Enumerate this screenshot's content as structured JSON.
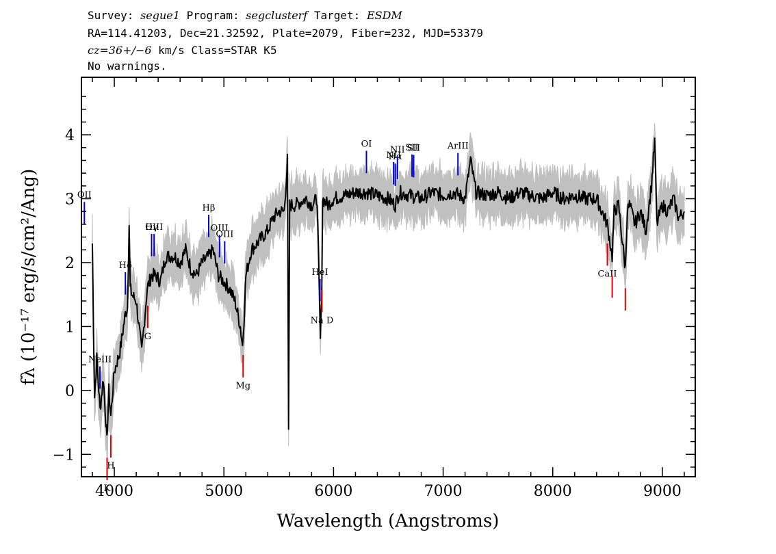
{
  "header": {
    "line1": {
      "survey_label": "Survey: ",
      "survey": "segue1",
      "program_label": " Program: ",
      "program": "segclusterf",
      "target_label": " Target: ",
      "target": "ESDM"
    },
    "line2": "RA=114.41203, Dec=21.32592, Plate=2079, Fiber=232, MJD=53379",
    "line3": {
      "cz": "cz=36+/−6",
      "rest": " km/s Class=STAR K5"
    },
    "line4": "No warnings."
  },
  "chart_data": {
    "type": "line",
    "xlabel": "Wavelength (Angstroms)",
    "ylabel": "fλ (10⁻¹⁷ erg/s/cm²/Ang)",
    "xlim": [
      3700,
      9300
    ],
    "ylim": [
      -1.35,
      4.9
    ],
    "x_ticks": [
      4000,
      5000,
      6000,
      7000,
      8000,
      9000
    ],
    "y_ticks": [
      -1,
      0,
      1,
      2,
      3,
      4
    ],
    "colors": {
      "flux": "#000000",
      "error_band": "#c0c0c0",
      "emission": "#0000cc",
      "absorption": "#dd0000"
    },
    "flux_series": {
      "x": [
        3800,
        3810,
        3820,
        3840,
        3870,
        3900,
        3933,
        3950,
        3968,
        4000,
        4050,
        4101,
        4120,
        4135,
        4145,
        4160,
        4200,
        4250,
        4300,
        4340,
        4380,
        4420,
        4470,
        4500,
        4550,
        4600,
        4650,
        4700,
        4750,
        4800,
        4861,
        4900,
        4950,
        5000,
        5050,
        5100,
        5150,
        5170,
        5183,
        5200,
        5250,
        5300,
        5350,
        5400,
        5450,
        5500,
        5550,
        5580,
        5590,
        5600,
        5650,
        5700,
        5750,
        5800,
        5850,
        5880,
        5892,
        5900,
        5950,
        6000,
        6100,
        6200,
        6300,
        6400,
        6500,
        6563,
        6600,
        6700,
        6800,
        6900,
        7000,
        7100,
        7200,
        7250,
        7300,
        7400,
        7500,
        7600,
        7700,
        7800,
        7900,
        8000,
        8100,
        8200,
        8300,
        8400,
        8498,
        8542,
        8560,
        8600,
        8662,
        8680,
        8700,
        8750,
        8800,
        8850,
        8900,
        8930,
        8950,
        9000,
        9050,
        9100,
        9150,
        9200
      ],
      "y": [
        2.3,
        1.0,
        -0.1,
        0.5,
        -0.3,
        0.2,
        -0.8,
        0.0,
        -0.4,
        0.3,
        0.6,
        1.2,
        1.3,
        2.6,
        1.6,
        1.5,
        1.4,
        0.6,
        1.6,
        1.8,
        1.8,
        1.7,
        2.1,
        2.1,
        2.1,
        2.0,
        2.2,
        1.9,
        1.8,
        2.0,
        2.1,
        2.2,
        1.8,
        1.7,
        1.6,
        1.4,
        1.0,
        0.7,
        1.1,
        1.8,
        2.2,
        2.3,
        2.4,
        2.5,
        2.7,
        2.8,
        2.8,
        3.6,
        -0.7,
        2.9,
        2.9,
        2.95,
        3.0,
        2.9,
        3.0,
        0.8,
        1.5,
        3.0,
        2.9,
        3.0,
        3.05,
        3.1,
        3.1,
        3.05,
        3.0,
        2.9,
        3.1,
        3.05,
        3.0,
        3.1,
        3.05,
        3.1,
        3.0,
        3.6,
        3.1,
        3.05,
        3.1,
        3.0,
        3.1,
        3.05,
        3.0,
        3.1,
        3.0,
        3.05,
        3.0,
        3.0,
        2.6,
        2.1,
        2.8,
        2.9,
        1.9,
        2.8,
        2.9,
        2.6,
        2.8,
        2.5,
        3.2,
        3.9,
        2.6,
        2.9,
        2.8,
        3.0,
        2.7,
        2.8
      ]
    },
    "lines": [
      {
        "name": "OII",
        "wavelength": 3727,
        "kind": "emission"
      },
      {
        "name": "NeIII",
        "wavelength": 3869,
        "kind": "emission"
      },
      {
        "name": "Hδ",
        "wavelength": 4101,
        "kind": "emission"
      },
      {
        "name": "Hγ",
        "wavelength": 4340,
        "kind": "emission"
      },
      {
        "name": "OIII",
        "wavelength": 4363,
        "kind": "emission"
      },
      {
        "name": "Hβ",
        "wavelength": 4861,
        "kind": "emission"
      },
      {
        "name": "OIII",
        "wavelength": 4959,
        "kind": "emission"
      },
      {
        "name": "OIII",
        "wavelength": 5007,
        "kind": "emission"
      },
      {
        "name": "HeI",
        "wavelength": 5876,
        "kind": "emission"
      },
      {
        "name": "OI",
        "wavelength": 6300,
        "kind": "emission"
      },
      {
        "name": "NII",
        "wavelength": 6548,
        "kind": "emission"
      },
      {
        "name": "Hα",
        "wavelength": 6563,
        "kind": "emission"
      },
      {
        "name": "NII",
        "wavelength": 6583,
        "kind": "emission"
      },
      {
        "name": "SII",
        "wavelength": 6716,
        "kind": "emission"
      },
      {
        "name": "SII",
        "wavelength": 6731,
        "kind": "emission"
      },
      {
        "name": "ArIII",
        "wavelength": 7135,
        "kind": "emission"
      },
      {
        "name": "K",
        "wavelength": 3934,
        "kind": "absorption"
      },
      {
        "name": "H",
        "wavelength": 3968,
        "kind": "absorption"
      },
      {
        "name": "G",
        "wavelength": 4305,
        "kind": "absorption"
      },
      {
        "name": "Mg",
        "wavelength": 5175,
        "kind": "absorption"
      },
      {
        "name": "Na D",
        "wavelength": 5894,
        "kind": "absorption"
      },
      {
        "name": "CaII",
        "wavelength": 8498,
        "kind": "absorption"
      },
      {
        "name": "CaII",
        "wavelength": 8542,
        "kind": "absorption"
      },
      {
        "name": "CaII",
        "wavelength": 8662,
        "kind": "absorption"
      }
    ]
  }
}
